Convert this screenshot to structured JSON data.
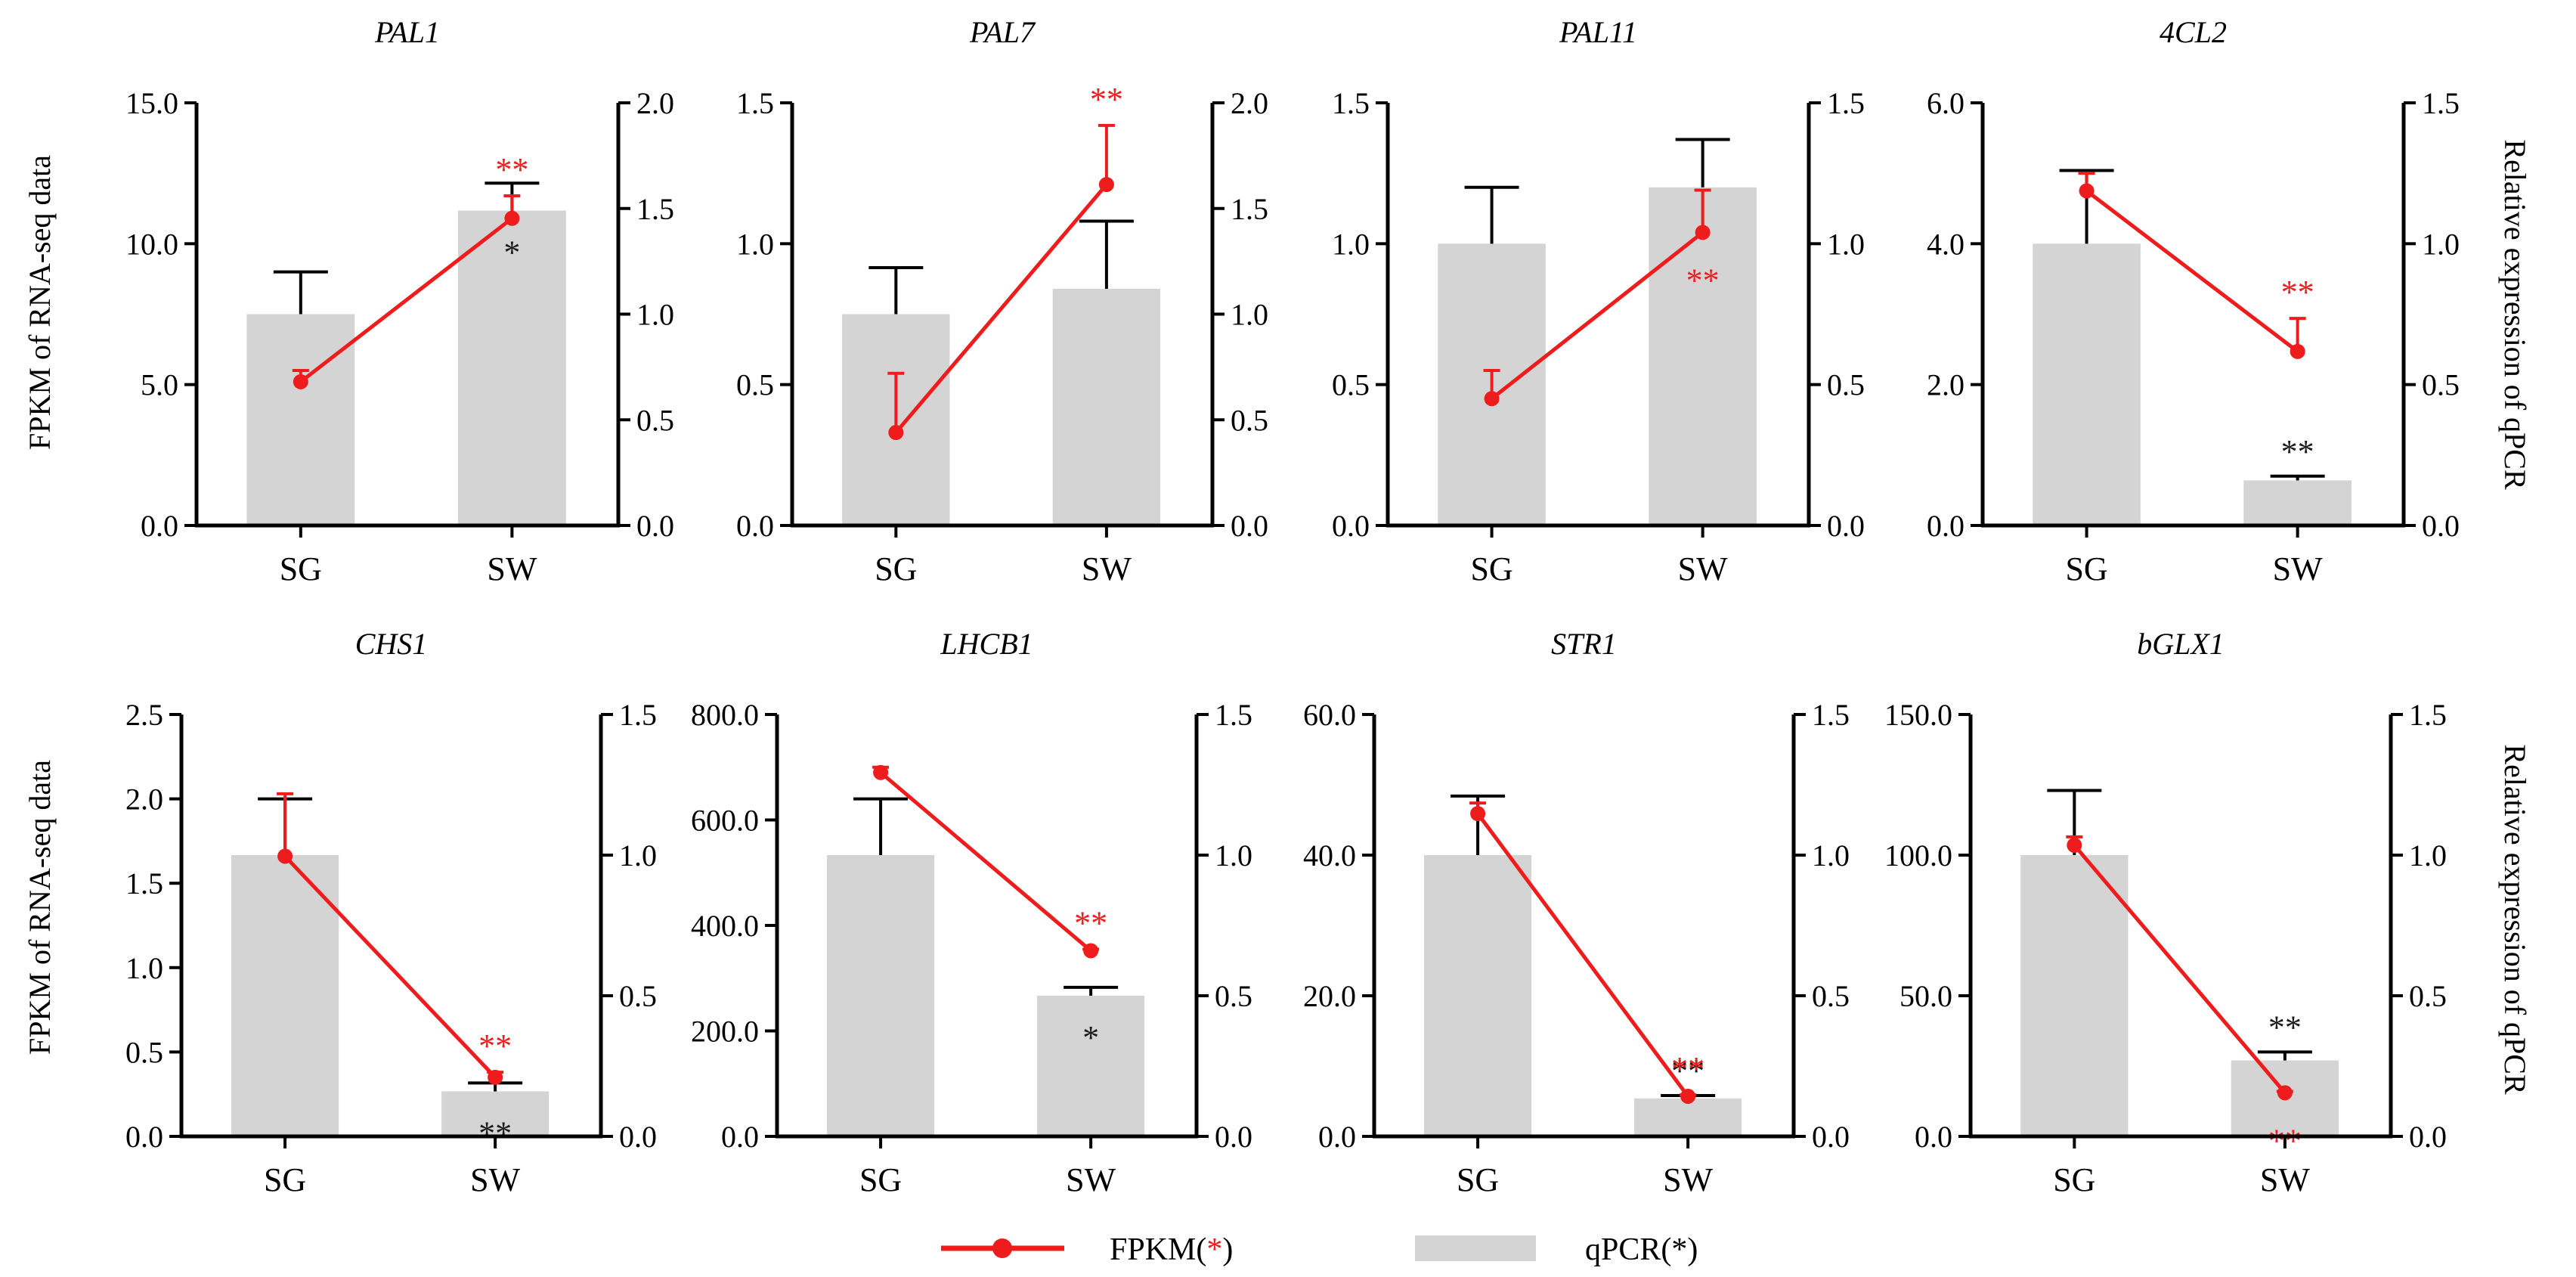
{
  "figure": {
    "y_label_left": "FPKM of RNA-seq data",
    "y_label_right": "Relative expression of qPCR",
    "legend": [
      {
        "label_prefix": "FPKM(",
        "label_star": "*",
        "label_suffix": ")",
        "marker": "line-dot",
        "color": "#ee1c1c"
      },
      {
        "label_prefix": "qPCR(",
        "label_star": "*",
        "label_suffix": ")",
        "marker": "bar",
        "color": "#d4d4d4"
      }
    ],
    "colors": {
      "fpkm": "#ee1c1c",
      "qpcr_bar": "#d4d4d4",
      "qpcr_sig": "#1a1a1a",
      "axis": "#000000"
    }
  },
  "chart_data": [
    {
      "title": "PAL1",
      "type": "bar+line",
      "categories": [
        "SG",
        "SW"
      ],
      "left_axis": {
        "ylim": [
          0,
          15
        ],
        "ticks": [
          "0.0",
          "5.0",
          "10.0",
          "15.0"
        ],
        "tick_values": [
          0,
          5,
          10,
          15
        ]
      },
      "right_axis": {
        "ylim": [
          0,
          2
        ],
        "ticks": [
          "0.0",
          "0.5",
          "1.0",
          "1.5",
          "2.0"
        ],
        "tick_values": [
          0,
          0.5,
          1,
          1.5,
          2
        ]
      },
      "qpcr": {
        "values": [
          1.0,
          1.49
        ],
        "errors": [
          0.2,
          0.13
        ],
        "sig": [
          "",
          "*"
        ],
        "sig_pos": [
          "",
          "below"
        ]
      },
      "fpkm": {
        "values": [
          5.1,
          10.9
        ],
        "errors": [
          0.4,
          0.8
        ],
        "sig": [
          "",
          "**"
        ],
        "sig_pos": [
          "",
          "above"
        ]
      }
    },
    {
      "title": "PAL7",
      "type": "bar+line",
      "categories": [
        "SG",
        "SW"
      ],
      "left_axis": {
        "ylim": [
          0,
          1.5
        ],
        "ticks": [
          "0.0",
          "0.5",
          "1.0",
          "1.5"
        ],
        "tick_values": [
          0,
          0.5,
          1,
          1.5
        ]
      },
      "right_axis": {
        "ylim": [
          0,
          2
        ],
        "ticks": [
          "0.0",
          "0.5",
          "1.0",
          "1.5",
          "2.0"
        ],
        "tick_values": [
          0,
          0.5,
          1,
          1.5,
          2
        ]
      },
      "qpcr": {
        "values": [
          1.0,
          1.12
        ],
        "errors": [
          0.22,
          0.32
        ],
        "sig": [
          "",
          ""
        ],
        "sig_pos": [
          "",
          ""
        ]
      },
      "fpkm": {
        "values": [
          0.33,
          1.21
        ],
        "errors": [
          0.21,
          0.21
        ],
        "sig": [
          "",
          "**"
        ],
        "sig_pos": [
          "",
          "above"
        ]
      }
    },
    {
      "title": "PAL11",
      "type": "bar+line",
      "categories": [
        "SG",
        "SW"
      ],
      "left_axis": {
        "ylim": [
          0,
          1.5
        ],
        "ticks": [
          "0.0",
          "0.5",
          "1.0",
          "1.5"
        ],
        "tick_values": [
          0,
          0.5,
          1,
          1.5
        ]
      },
      "right_axis": {
        "ylim": [
          0,
          1.5
        ],
        "ticks": [
          "0.0",
          "0.5",
          "1.0",
          "1.5"
        ],
        "tick_values": [
          0,
          0.5,
          1,
          1.5
        ]
      },
      "qpcr": {
        "values": [
          1.0,
          1.2
        ],
        "errors": [
          0.2,
          0.17
        ],
        "sig": [
          "",
          ""
        ],
        "sig_pos": [
          "",
          ""
        ]
      },
      "fpkm": {
        "values": [
          0.45,
          1.04
        ],
        "errors": [
          0.1,
          0.15
        ],
        "sig": [
          "",
          "**"
        ],
        "sig_pos": [
          "",
          "below"
        ]
      }
    },
    {
      "title": "4CL2",
      "type": "bar+line",
      "categories": [
        "SG",
        "SW"
      ],
      "left_axis": {
        "ylim": [
          0,
          6
        ],
        "ticks": [
          "0.0",
          "2.0",
          "4.0",
          "6.0"
        ],
        "tick_values": [
          0,
          2,
          4,
          6
        ]
      },
      "right_axis": {
        "ylim": [
          0,
          1.5
        ],
        "ticks": [
          "0.0",
          "0.5",
          "1.0",
          "1.5"
        ],
        "tick_values": [
          0,
          0.5,
          1,
          1.5
        ]
      },
      "qpcr": {
        "values": [
          1.0,
          0.16
        ],
        "errors": [
          0.26,
          0.015
        ],
        "sig": [
          "",
          "**"
        ],
        "sig_pos": [
          "",
          "above"
        ]
      },
      "fpkm": {
        "values": [
          4.75,
          2.47
        ],
        "errors": [
          0.25,
          0.47
        ],
        "sig": [
          "",
          "**"
        ],
        "sig_pos": [
          "",
          "above"
        ]
      }
    },
    {
      "title": "CHS1",
      "type": "bar+line",
      "categories": [
        "SG",
        "SW"
      ],
      "left_axis": {
        "ylim": [
          0,
          2.5
        ],
        "ticks": [
          "0.0",
          "0.5",
          "1.0",
          "1.5",
          "2.0",
          "2.5"
        ],
        "tick_values": [
          0,
          0.5,
          1,
          1.5,
          2,
          2.5
        ]
      },
      "right_axis": {
        "ylim": [
          0,
          1.5
        ],
        "ticks": [
          "0.0",
          "0.5",
          "1.0",
          "1.5"
        ],
        "tick_values": [
          0,
          0.5,
          1,
          1.5
        ]
      },
      "qpcr": {
        "values": [
          1.0,
          0.16
        ],
        "errors": [
          0.2,
          0.03
        ],
        "sig": [
          "",
          "**"
        ],
        "sig_pos": [
          "",
          "below"
        ]
      },
      "fpkm": {
        "values": [
          1.66,
          0.35
        ],
        "errors": [
          0.37,
          0.03
        ],
        "sig": [
          "",
          "**"
        ],
        "sig_pos": [
          "",
          "above"
        ]
      }
    },
    {
      "title": "LHCB1",
      "type": "bar+line",
      "categories": [
        "SG",
        "SW"
      ],
      "left_axis": {
        "ylim": [
          0,
          800
        ],
        "ticks": [
          "0.0",
          "200.0",
          "400.0",
          "600.0",
          "800.0"
        ],
        "tick_values": [
          0,
          200,
          400,
          600,
          800
        ]
      },
      "right_axis": {
        "ylim": [
          0,
          1.5
        ],
        "ticks": [
          "0.0",
          "0.5",
          "1.0",
          "1.5"
        ],
        "tick_values": [
          0,
          0.5,
          1,
          1.5
        ]
      },
      "qpcr": {
        "values": [
          1.0,
          0.5
        ],
        "errors": [
          0.2,
          0.03
        ],
        "sig": [
          "",
          "*"
        ],
        "sig_pos": [
          "",
          "below"
        ]
      },
      "fpkm": {
        "values": [
          690,
          352
        ],
        "errors": [
          10,
          3
        ],
        "sig": [
          "",
          "**"
        ],
        "sig_pos": [
          "",
          "above"
        ]
      }
    },
    {
      "title": "STR1",
      "type": "bar+line",
      "categories": [
        "SG",
        "SW"
      ],
      "left_axis": {
        "ylim": [
          0,
          60
        ],
        "ticks": [
          "0.0",
          "20.0",
          "40.0",
          "60.0"
        ],
        "tick_values": [
          0,
          20,
          40,
          60
        ]
      },
      "right_axis": {
        "ylim": [
          0,
          1.5
        ],
        "ticks": [
          "0.0",
          "0.5",
          "1.0",
          "1.5"
        ],
        "tick_values": [
          0,
          0.5,
          1,
          1.5
        ]
      },
      "qpcr": {
        "values": [
          1.0,
          0.135
        ],
        "errors": [
          0.21,
          0.01
        ],
        "sig": [
          "",
          "**"
        ],
        "sig_pos": [
          "",
          "above"
        ]
      },
      "fpkm": {
        "values": [
          45.9,
          5.7
        ],
        "errors": [
          1.5,
          0.2
        ],
        "sig": [
          "",
          "**"
        ],
        "sig_pos": [
          "",
          "above"
        ]
      }
    },
    {
      "title": "bGLX1",
      "type": "bar+line",
      "categories": [
        "SG",
        "SW"
      ],
      "left_axis": {
        "ylim": [
          0,
          150
        ],
        "ticks": [
          "0.0",
          "50.0",
          "100.0",
          "150.0"
        ],
        "tick_values": [
          0,
          50,
          100,
          150
        ]
      },
      "right_axis": {
        "ylim": [
          0,
          1.5
        ],
        "ticks": [
          "0.0",
          "0.5",
          "1.0",
          "1.5"
        ],
        "tick_values": [
          0,
          0.5,
          1,
          1.5
        ]
      },
      "qpcr": {
        "values": [
          1.0,
          0.27
        ],
        "errors": [
          0.23,
          0.03
        ],
        "sig": [
          "",
          "**"
        ],
        "sig_pos": [
          "",
          "above"
        ]
      },
      "fpkm": {
        "values": [
          103.5,
          15.5
        ],
        "errors": [
          3,
          0.5
        ],
        "sig": [
          "",
          "**"
        ],
        "sig_pos": [
          "",
          "below"
        ]
      }
    }
  ]
}
